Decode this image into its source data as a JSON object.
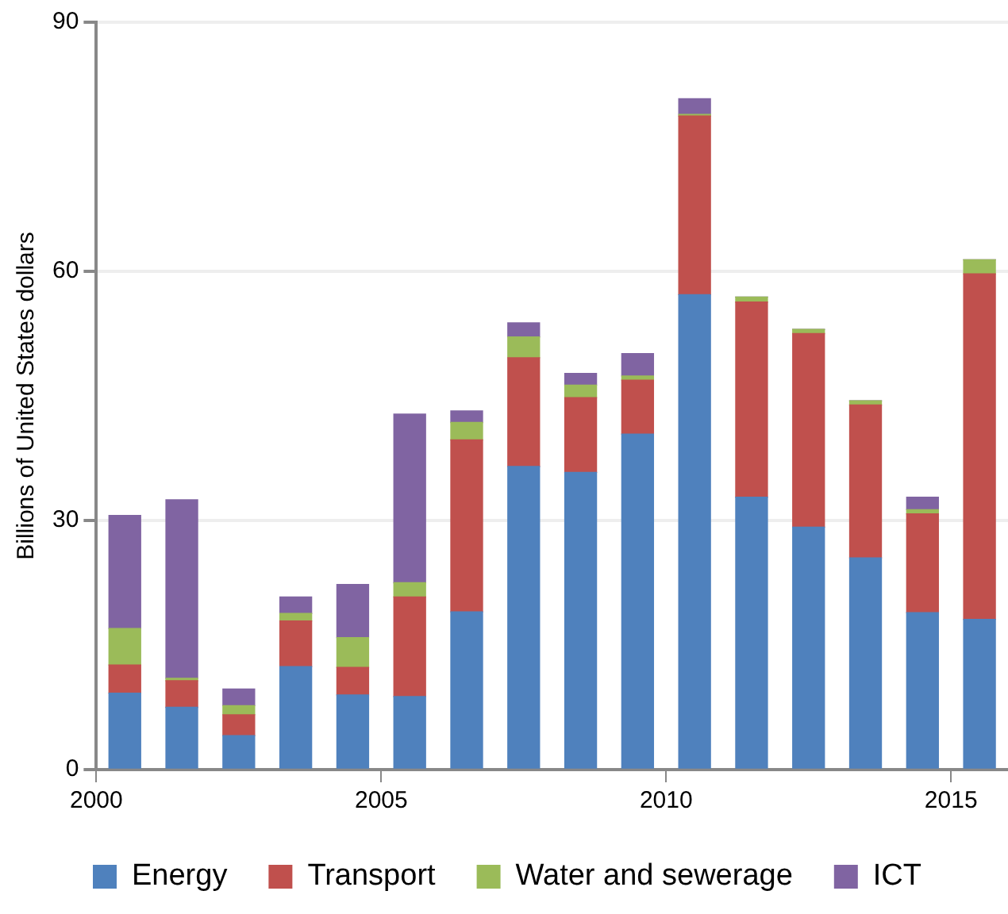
{
  "chart_data": {
    "type": "bar",
    "stacked": true,
    "ylabel": "Billions of United States dollars",
    "x": [
      2000.5,
      2001.5,
      2002.5,
      2003.5,
      2004.5,
      2005.5,
      2006.5,
      2007.5,
      2008.5,
      2009.5,
      2010.5,
      2011.5,
      2012.5,
      2013.5,
      2014.5,
      2015.5
    ],
    "xlim": [
      2000,
      2016
    ],
    "xticks": [
      2000,
      2005,
      2010,
      2015
    ],
    "ylim": [
      0,
      90
    ],
    "yticks": [
      0,
      30,
      60,
      90
    ],
    "grid": "y",
    "legend": "bottom",
    "series": [
      {
        "name": "Energy",
        "color": "#4f81bd",
        "values": [
          9.2,
          7.5,
          4.1,
          12.4,
          9.0,
          8.8,
          19.0,
          36.5,
          35.8,
          40.4,
          57.2,
          32.8,
          29.2,
          25.5,
          18.9,
          18.1
        ]
      },
      {
        "name": "Transport",
        "color": "#c0504d",
        "values": [
          3.4,
          3.2,
          2.5,
          5.5,
          3.3,
          12.0,
          20.7,
          13.1,
          9.0,
          6.5,
          21.5,
          23.5,
          23.3,
          18.4,
          11.9,
          41.6
        ]
      },
      {
        "name": "Water and sewerage",
        "color": "#9bbb59",
        "values": [
          4.4,
          0.3,
          1.1,
          0.9,
          3.6,
          1.7,
          2.1,
          2.5,
          1.5,
          0.5,
          0.2,
          0.6,
          0.5,
          0.5,
          0.5,
          1.7
        ]
      },
      {
        "name": "ICT",
        "color": "#8064a2",
        "values": [
          13.6,
          21.5,
          2.0,
          2.0,
          6.4,
          20.3,
          1.4,
          1.7,
          1.4,
          2.7,
          1.9,
          0,
          0,
          0,
          1.5,
          0
        ]
      }
    ]
  }
}
